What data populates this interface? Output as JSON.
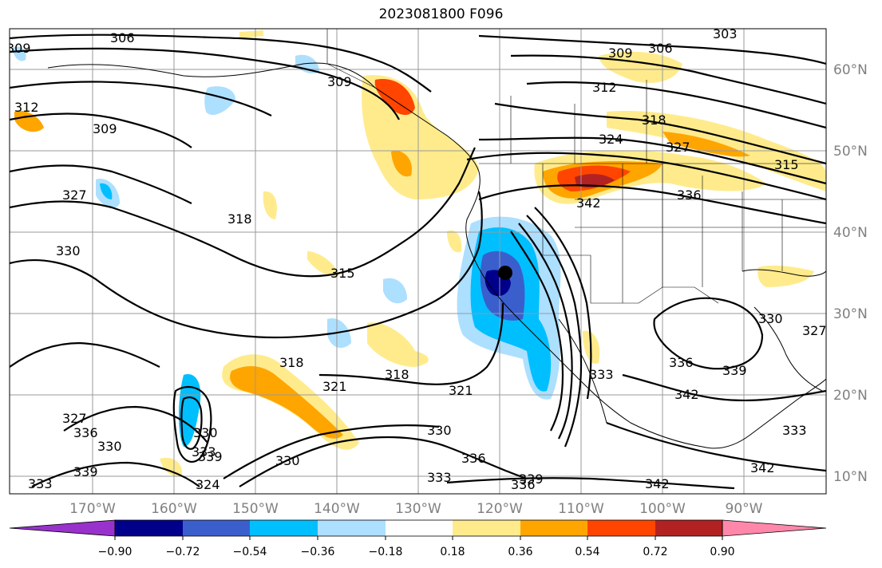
{
  "title": "2023081800 F096",
  "lat_labels": [
    "60°N",
    "50°N",
    "40°N",
    "30°N",
    "20°N",
    "10°N"
  ],
  "lon_labels": [
    "170°W",
    "160°W",
    "150°W",
    "140°W",
    "130°W",
    "120°W",
    "110°W",
    "100°W",
    "90°W"
  ],
  "colorbar": {
    "colors": [
      "#9932CC",
      "#00008B",
      "#3A5FCD",
      "#00BFFF",
      "#ADDFFF",
      "#FFFFFF",
      "#FFEB8C",
      "#FFA500",
      "#FF4500",
      "#B22222",
      "#FF88AA"
    ],
    "tick_labels": [
      "−0.90",
      "−0.72",
      "−0.54",
      "−0.36",
      "−0.18",
      "0.18",
      "0.36",
      "0.54",
      "0.72",
      "0.90"
    ]
  },
  "contour_labels": [
    "306",
    "303",
    "309",
    "306",
    "309",
    "312",
    "312",
    "309",
    "309",
    "318",
    "324",
    "327",
    "315",
    "336",
    "327",
    "330",
    "318",
    "342",
    "315",
    "321",
    "318",
    "321",
    "318",
    "330",
    "327",
    "336",
    "330",
    "339",
    "330",
    "333",
    "333",
    "339",
    "324",
    "333",
    "336",
    "336",
    "330",
    "339",
    "342",
    "336",
    "339",
    "342",
    "330",
    "327",
    "333",
    "342",
    "333"
  ],
  "marker": {
    "label": "storm-center",
    "color": "#000000"
  }
}
